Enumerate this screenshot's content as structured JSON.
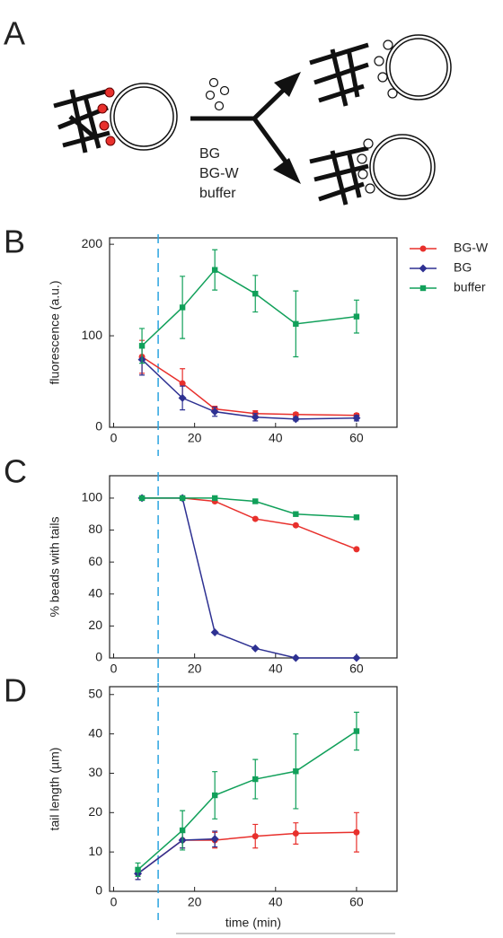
{
  "panels": [
    "A",
    "B",
    "C",
    "D"
  ],
  "diagram": {
    "labels": [
      "BG",
      "BG-W",
      "buffer"
    ]
  },
  "chart_data": [
    {
      "type": "line",
      "ylabel": "fluorescence (a.u.)",
      "xlim": [
        -1,
        70
      ],
      "xticks": [
        0,
        20,
        40,
        60
      ],
      "ylim": [
        0,
        207
      ],
      "yticks": [
        0,
        100,
        200
      ],
      "vline": 11,
      "vline_color": "#29a3e0",
      "legend": "right-outside",
      "series": [
        {
          "name": "BG-W",
          "color": "#e8302c",
          "marker": "circle",
          "x": [
            7,
            17,
            25,
            35,
            45,
            60
          ],
          "values": [
            77,
            48,
            20,
            15,
            14,
            13
          ],
          "errors": [
            18,
            16,
            3,
            3,
            2,
            2
          ]
        },
        {
          "name": "BG",
          "color": "#2e3192",
          "marker": "diamond",
          "x": [
            7,
            17,
            25,
            35,
            45,
            60
          ],
          "values": [
            74,
            32,
            17,
            11,
            9,
            10
          ],
          "errors": [
            17,
            13,
            5,
            4,
            2,
            3
          ]
        },
        {
          "name": "buffer",
          "color": "#11a05a",
          "marker": "square",
          "x": [
            7,
            17,
            25,
            35,
            45,
            60
          ],
          "values": [
            89,
            131,
            172,
            146,
            113,
            121
          ],
          "errors": [
            19,
            34,
            22,
            20,
            36,
            18
          ]
        }
      ]
    },
    {
      "type": "line",
      "ylabel": "% beads with tails",
      "xlim": [
        -1,
        70
      ],
      "xticks": [
        0,
        20,
        40,
        60
      ],
      "ylim": [
        0,
        114
      ],
      "yticks": [
        0,
        20,
        40,
        60,
        80,
        100
      ],
      "vline": 11,
      "vline_color": "#29a3e0",
      "series": [
        {
          "color": "#e8302c",
          "marker": "circle",
          "x": [
            7,
            17,
            25,
            35,
            45,
            60
          ],
          "values": [
            100,
            100,
            98,
            87,
            83,
            68
          ]
        },
        {
          "color": "#2e3192",
          "marker": "diamond",
          "x": [
            7,
            17,
            25,
            35,
            45,
            60
          ],
          "values": [
            100,
            100,
            16,
            6,
            0,
            0
          ]
        },
        {
          "color": "#11a05a",
          "marker": "square",
          "x": [
            7,
            17,
            25,
            35,
            45,
            60
          ],
          "values": [
            100,
            100,
            100,
            98,
            90,
            88
          ]
        }
      ]
    },
    {
      "type": "line",
      "ylabel": "tail length (µm)",
      "xlabel": "time (min)",
      "xlim": [
        -1,
        70
      ],
      "xticks": [
        0,
        20,
        40,
        60
      ],
      "ylim": [
        0,
        52
      ],
      "yticks": [
        0,
        10,
        20,
        30,
        40,
        50
      ],
      "vline": 11,
      "vline_color": "#29a3e0",
      "series": [
        {
          "color": "#e8302c",
          "marker": "circle",
          "x": [
            6,
            17,
            25,
            35,
            45,
            60
          ],
          "values": [
            4.5,
            13,
            13,
            14,
            14.7,
            15
          ],
          "errors": [
            1.5,
            2,
            2,
            3,
            2.7,
            5
          ]
        },
        {
          "color": "#2e3192",
          "marker": "diamond",
          "x": [
            6,
            17,
            25
          ],
          "values": [
            4.5,
            13,
            13.3
          ],
          "errors": [
            1.5,
            2,
            2
          ]
        },
        {
          "color": "#11a05a",
          "marker": "square",
          "x": [
            6,
            17,
            25,
            35,
            45,
            60
          ],
          "values": [
            5.5,
            15.5,
            24.4,
            28.5,
            30.5,
            40.7
          ],
          "errors": [
            1.7,
            5,
            6,
            5,
            9.5,
            4.8
          ]
        }
      ]
    }
  ]
}
